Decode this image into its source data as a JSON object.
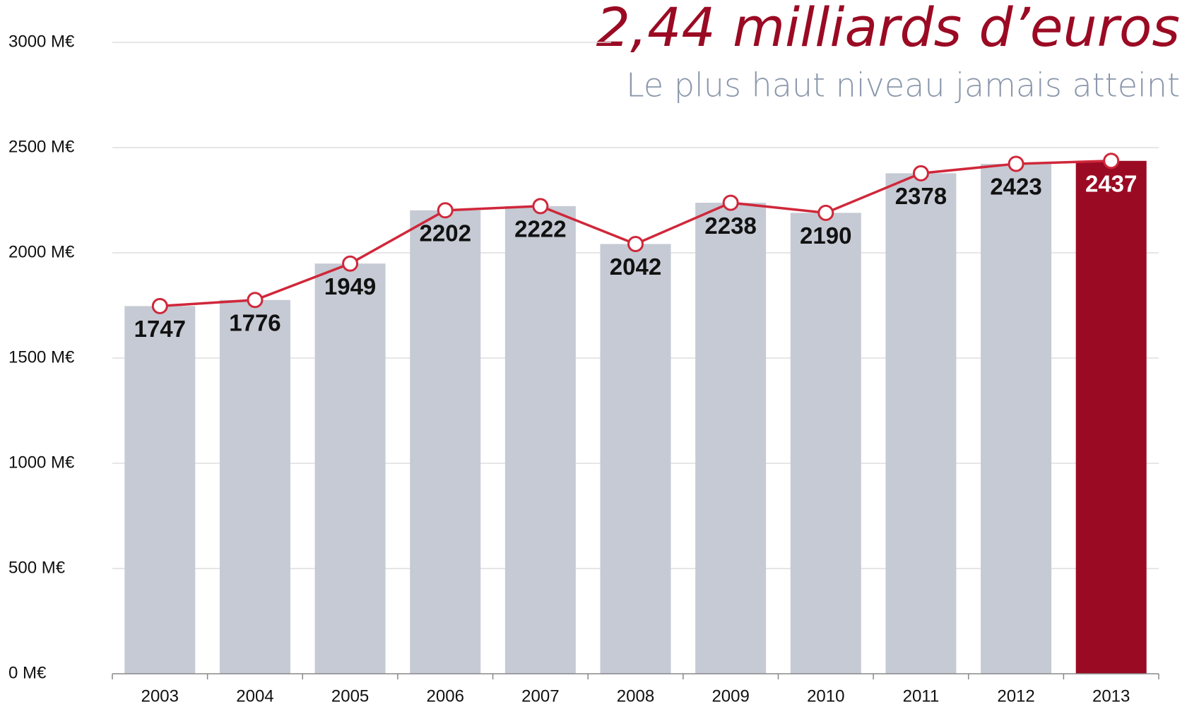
{
  "chart_data": {
    "type": "bar",
    "title": "2,44 milliards d’euros",
    "subtitle": "Le plus haut niveau jamais atteint",
    "categories": [
      "2003",
      "2004",
      "2005",
      "2006",
      "2007",
      "2008",
      "2009",
      "2010",
      "2011",
      "2012",
      "2013"
    ],
    "values": [
      1747,
      1776,
      1949,
      2202,
      2222,
      2042,
      2238,
      2190,
      2378,
      2423,
      2437
    ],
    "colors": [
      "#c5cad4",
      "#c5cad4",
      "#c5cad4",
      "#c5cad4",
      "#c5cad4",
      "#c5cad4",
      "#c5cad4",
      "#c5cad4",
      "#c5cad4",
      "#c5cad4",
      "#9b0a23"
    ],
    "line_color": "#d0273a",
    "ylim": [
      0,
      3000
    ],
    "yticks": [
      {
        "value": 0,
        "label": "0  M€"
      },
      {
        "value": 500,
        "label": "500  M€"
      },
      {
        "value": 1000,
        "label": "1000  M€"
      },
      {
        "value": 1500,
        "label": "1500  M€"
      },
      {
        "value": 2000,
        "label": "2000  M€"
      },
      {
        "value": 2500,
        "label": "2500  M€"
      },
      {
        "value": 3000,
        "label": "3000  M€"
      }
    ],
    "grid": true
  }
}
